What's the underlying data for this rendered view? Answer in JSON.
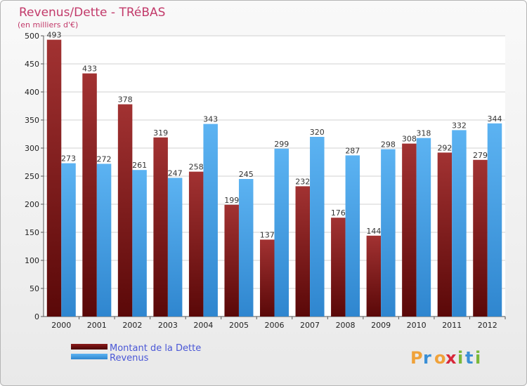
{
  "chart_data": {
    "type": "bar",
    "title": "Revenus/Dette - TRéBAS",
    "subtitle": "(en milliers d'€)",
    "categories": [
      "2000",
      "2001",
      "2002",
      "2003",
      "2004",
      "2005",
      "2006",
      "2007",
      "2008",
      "2009",
      "2010",
      "2011",
      "2012"
    ],
    "series": [
      {
        "name": "Montant de la Dette",
        "color": "#8b1a1a",
        "values": [
          493,
          433,
          378,
          319,
          258,
          199,
          137,
          232,
          176,
          144,
          308,
          292,
          279
        ]
      },
      {
        "name": "Revenus",
        "color": "#4aa3e8",
        "values": [
          273,
          272,
          261,
          247,
          343,
          245,
          299,
          320,
          287,
          298,
          318,
          332,
          344
        ]
      }
    ],
    "yticks": [
      0,
      50,
      100,
      150,
      200,
      250,
      300,
      350,
      400,
      450,
      500
    ],
    "ylim": [
      0,
      500
    ],
    "xlabel": "",
    "ylabel": "",
    "grid": true,
    "legend": "bottom-left"
  },
  "logo": {
    "text": "Proxiti",
    "letters": [
      "P",
      "r",
      "o",
      "x",
      "i",
      "t",
      "i"
    ]
  },
  "colors": {
    "title": "#c23a6a",
    "legend_text": "#4a57d6"
  }
}
